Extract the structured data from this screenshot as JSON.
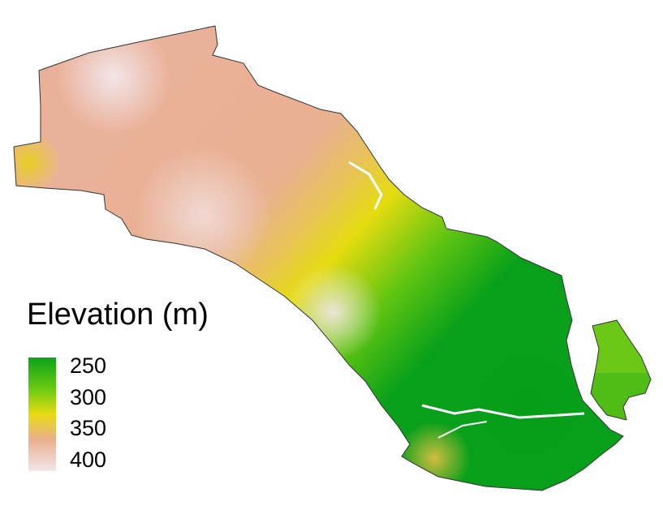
{
  "legend": {
    "title": "Elevation (m)",
    "ticks": [
      "250",
      "300",
      "350",
      "400"
    ]
  },
  "colors": {
    "low": "#0aa31a",
    "mid_low": "#6ccb10",
    "mid": "#e8dc12",
    "mid_high": "#e9b08c",
    "high": "#f3e6ea",
    "outline": "#333333"
  }
}
